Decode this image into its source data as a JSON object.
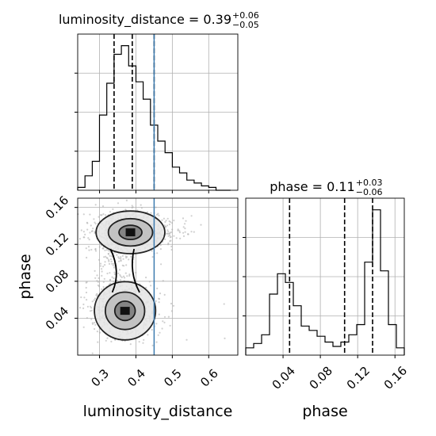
{
  "chart_data": [
    {
      "type": "histogram",
      "panel": "luminosity_distance-marginal",
      "title": "luminosity_distance = 0.39",
      "title_sup": "+0.06",
      "title_sub": "−0.05",
      "xlim": [
        0.24,
        0.68
      ],
      "bin_edges": [
        0.24,
        0.26,
        0.28,
        0.3,
        0.32,
        0.34,
        0.36,
        0.38,
        0.4,
        0.42,
        0.44,
        0.46,
        0.48,
        0.5,
        0.52,
        0.54,
        0.56,
        0.58,
        0.6,
        0.62,
        0.64,
        0.66
      ],
      "counts": [
        2,
        10,
        20,
        52,
        74,
        94,
        100,
        86,
        75,
        63,
        45,
        34,
        26,
        16,
        12,
        7,
        5,
        3,
        2,
        0,
        0
      ],
      "quantiles": [
        0.34,
        0.39,
        0.45
      ],
      "grid": true
    },
    {
      "type": "histogram",
      "panel": "phase-marginal",
      "title": "phase = 0.11",
      "title_sup": "+0.03",
      "title_sub": "−0.06",
      "xlim": [
        0.0,
        0.17
      ],
      "xticks": [
        "0.04",
        "0.08",
        "0.12",
        "0.16"
      ],
      "xlabel": "phase",
      "bin_edges": [
        0.0,
        0.0085,
        0.017,
        0.0255,
        0.034,
        0.0425,
        0.051,
        0.0595,
        0.068,
        0.0765,
        0.085,
        0.0935,
        0.102,
        0.1105,
        0.119,
        0.1275,
        0.136,
        0.1445,
        0.153,
        0.1615,
        0.17
      ],
      "counts": [
        5,
        8,
        14,
        42,
        56,
        50,
        34,
        20,
        17,
        13,
        9,
        6,
        9,
        14,
        21,
        64,
        100,
        58,
        21,
        5
      ],
      "quantiles": [
        0.047,
        0.106,
        0.136
      ],
      "grid": true
    },
    {
      "type": "scatter-density",
      "panel": "joint",
      "xlim": [
        0.24,
        0.68
      ],
      "ylim": [
        0.0,
        0.17
      ],
      "xticks": [
        "0.3",
        "0.4",
        "0.5",
        "0.6"
      ],
      "yticks": [
        "0.04",
        "0.08",
        "0.12",
        "0.16"
      ],
      "xlabel": "luminosity_distance",
      "ylabel": "phase",
      "truth_x": 0.45,
      "modes": [
        {
          "x": 0.385,
          "y": 0.133,
          "sx": 0.045,
          "sy": 0.011,
          "weight": 0.58
        },
        {
          "x": 0.37,
          "y": 0.048,
          "sx": 0.04,
          "sy": 0.015,
          "weight": 0.42
        }
      ],
      "contour_levels": 3,
      "grid": true
    }
  ],
  "colors": {
    "line": "#000000",
    "truth": "#3d7bb0",
    "grid": "#b0b0b0",
    "points": "#a9a9a9"
  }
}
